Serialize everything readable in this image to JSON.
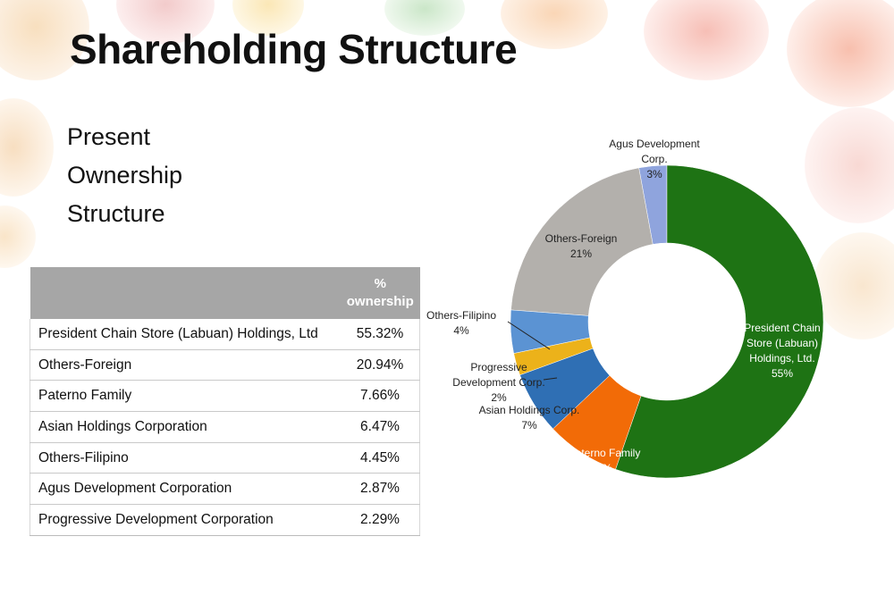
{
  "title": "Shareholding Structure",
  "subtitle": [
    "Present",
    "Ownership",
    "Structure"
  ],
  "table": {
    "header_name": "",
    "header_pct": [
      "%",
      "ownership"
    ],
    "rows": [
      {
        "name": "President Chain Store (Labuan) Holdings, Ltd",
        "pct": "55.32%"
      },
      {
        "name": "Others-Foreign",
        "pct": "20.94%"
      },
      {
        "name": "Paterno Family",
        "pct": "7.66%"
      },
      {
        "name": "Asian Holdings Corporation",
        "pct": "6.47%"
      },
      {
        "name": "Others-Filipino",
        "pct": "4.45%"
      },
      {
        "name": "Agus Development Corporation",
        "pct": "2.87%"
      },
      {
        "name": "Progressive Development Corporation",
        "pct": "2.29%"
      }
    ]
  },
  "chart_data": {
    "type": "pie",
    "variant": "doughnut",
    "title": "",
    "start": "top",
    "direction": "clockwise",
    "slices": [
      {
        "label": "President Chain Store (Labuan) Holdings, Ltd.",
        "value": 55.32,
        "pct_label": "55%",
        "color": "#1e7314",
        "label_lines": [
          "President Chain",
          "Store (Labuan)",
          "Holdings, Ltd.",
          "55%"
        ],
        "text_color": "light"
      },
      {
        "label": "Paterno Family",
        "value": 7.66,
        "pct_label": "8%",
        "color": "#f26b07",
        "label_lines": [
          "Paterno Family",
          "8%"
        ],
        "text_color": "light"
      },
      {
        "label": "Asian Holdings Corp.",
        "value": 6.47,
        "pct_label": "7%",
        "color": "#2f6fb4",
        "label_lines": [
          "Asian Holdings Corp.",
          "7%"
        ],
        "text_color": "dark"
      },
      {
        "label": "Progressive Development Corp.",
        "value": 2.29,
        "pct_label": "2%",
        "color": "#ecb21a",
        "label_lines": [
          "Progressive",
          "Development Corp.",
          "2%"
        ],
        "text_color": "dark"
      },
      {
        "label": "Others-Filipino",
        "value": 4.45,
        "pct_label": "4%",
        "color": "#5b93d3",
        "label_lines": [
          "Others-Filipino",
          "4%"
        ],
        "text_color": "dark"
      },
      {
        "label": "Others-Foreign",
        "value": 20.94,
        "pct_label": "21%",
        "color": "#b3b0ac",
        "label_lines": [
          "Others-Foreign",
          "21%"
        ],
        "text_color": "dark"
      },
      {
        "label": "Agus Development Corp.",
        "value": 2.87,
        "pct_label": "3%",
        "color": "#8fa4dd",
        "label_lines": [
          "Agus Development",
          "Corp.",
          "3%"
        ],
        "text_color": "dark"
      }
    ]
  }
}
